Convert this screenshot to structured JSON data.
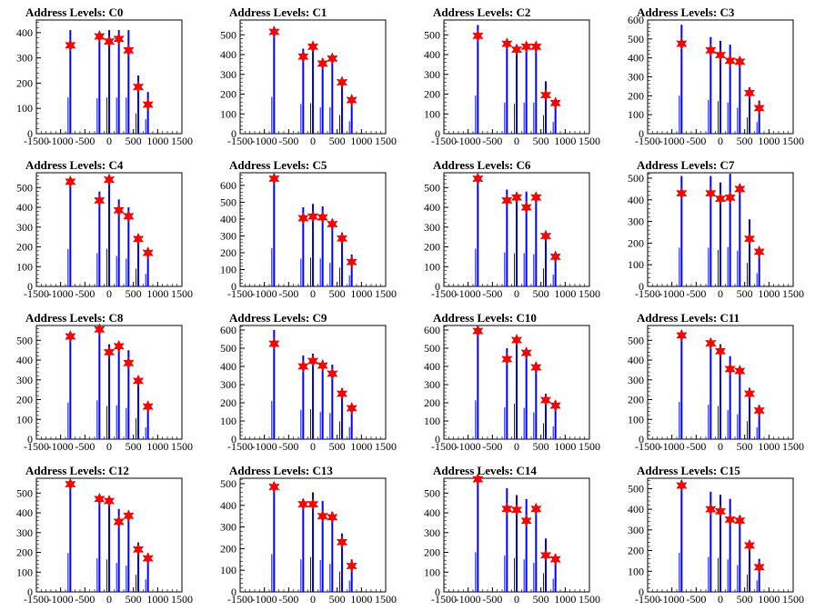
{
  "chart_data": [
    {
      "type": "bar",
      "title": "Address Levels: C0",
      "xlim": [
        -1500,
        1500
      ],
      "ylim": [
        0,
        450
      ],
      "yticks": [
        0,
        100,
        200,
        300,
        400
      ],
      "xticks": [
        -1500,
        -1000,
        -500,
        0,
        500,
        1000,
        1500
      ],
      "x": [
        -800,
        -200,
        0,
        200,
        400,
        600,
        800
      ],
      "values": [
        410,
        400,
        410,
        410,
        410,
        230,
        165
      ],
      "peaks_y": [
        350,
        385,
        365,
        375,
        330,
        185,
        115
      ]
    },
    {
      "type": "bar",
      "title": "Address Levels: C1",
      "xlim": [
        -1500,
        1500
      ],
      "ylim": [
        0,
        575
      ],
      "yticks": [
        0,
        100,
        200,
        300,
        400,
        500
      ],
      "xticks": [
        -1500,
        -1000,
        -500,
        0,
        500,
        1000,
        1500
      ],
      "x": [
        -800,
        -200,
        0,
        200,
        400,
        600,
        800
      ],
      "values": [
        530,
        430,
        440,
        380,
        380,
        270,
        180
      ],
      "peaks_y": [
        515,
        390,
        440,
        355,
        380,
        260,
        170
      ]
    },
    {
      "type": "bar",
      "title": "Address Levels: C2",
      "xlim": [
        -1500,
        1500
      ],
      "ylim": [
        0,
        575
      ],
      "yticks": [
        0,
        100,
        200,
        300,
        400,
        500
      ],
      "xticks": [
        -1500,
        -1000,
        -500,
        0,
        500,
        1000,
        1500
      ],
      "x": [
        -800,
        -200,
        0,
        200,
        400,
        600,
        800
      ],
      "values": [
        550,
        450,
        430,
        450,
        450,
        265,
        170
      ],
      "peaks_y": [
        495,
        455,
        425,
        440,
        440,
        195,
        155
      ]
    },
    {
      "type": "bar",
      "title": "Address Levels: C3",
      "xlim": [
        -1500,
        1500
      ],
      "ylim": [
        0,
        600
      ],
      "yticks": [
        0,
        100,
        200,
        300,
        400,
        500,
        600
      ],
      "xticks": [
        -1500,
        -1000,
        -500,
        0,
        500,
        1000,
        1500
      ],
      "x": [
        -800,
        -200,
        0,
        200,
        400,
        600,
        800
      ],
      "values": [
        575,
        510,
        490,
        470,
        390,
        245,
        175
      ],
      "peaks_y": [
        475,
        440,
        415,
        385,
        380,
        215,
        135
      ]
    },
    {
      "type": "bar",
      "title": "Address Levels: C4",
      "xlim": [
        -1500,
        1500
      ],
      "ylim": [
        0,
        575
      ],
      "yticks": [
        0,
        100,
        200,
        300,
        400,
        500
      ],
      "xticks": [
        -1500,
        -1000,
        -500,
        0,
        500,
        1000,
        1500
      ],
      "x": [
        -800,
        -200,
        0,
        200,
        400,
        600,
        800
      ],
      "values": [
        540,
        480,
        545,
        440,
        400,
        255,
        180
      ],
      "peaks_y": [
        530,
        435,
        540,
        385,
        355,
        240,
        170
      ]
    },
    {
      "type": "bar",
      "title": "Address Levels: C5",
      "xlim": [
        -1500,
        1500
      ],
      "ylim": [
        0,
        675
      ],
      "yticks": [
        0,
        100,
        200,
        300,
        400,
        500,
        600
      ],
      "xticks": [
        -1500,
        -1000,
        -500,
        0,
        500,
        1000,
        1500
      ],
      "x": [
        -800,
        -200,
        0,
        200,
        400,
        600,
        800
      ],
      "values": [
        650,
        470,
        490,
        475,
        400,
        320,
        190
      ],
      "peaks_y": [
        640,
        405,
        415,
        410,
        370,
        285,
        145
      ]
    },
    {
      "type": "bar",
      "title": "Address Levels: C6",
      "xlim": [
        -1500,
        1500
      ],
      "ylim": [
        0,
        575
      ],
      "yticks": [
        0,
        100,
        200,
        300,
        400,
        500
      ],
      "xticks": [
        -1500,
        -1000,
        -500,
        0,
        500,
        1000,
        1500
      ],
      "x": [
        -800,
        -200,
        0,
        200,
        400,
        600,
        800
      ],
      "values": [
        545,
        490,
        475,
        480,
        465,
        260,
        170
      ],
      "peaks_y": [
        545,
        435,
        450,
        400,
        450,
        255,
        150
      ]
    },
    {
      "type": "bar",
      "title": "Address Levels: C7",
      "xlim": [
        -1500,
        1500
      ],
      "ylim": [
        0,
        525
      ],
      "yticks": [
        0,
        100,
        200,
        300,
        400,
        500
      ],
      "xticks": [
        -1500,
        -1000,
        -500,
        0,
        500,
        1000,
        1500
      ],
      "x": [
        -800,
        -200,
        0,
        200,
        400,
        600,
        800
      ],
      "values": [
        510,
        510,
        480,
        520,
        470,
        310,
        175
      ],
      "peaks_y": [
        430,
        430,
        405,
        410,
        450,
        220,
        160
      ]
    },
    {
      "type": "bar",
      "title": "Address Levels: C8",
      "xlim": [
        -1500,
        1500
      ],
      "ylim": [
        0,
        575
      ],
      "yticks": [
        0,
        100,
        200,
        300,
        400,
        500
      ],
      "xticks": [
        -1500,
        -1000,
        -500,
        0,
        500,
        1000,
        1500
      ],
      "x": [
        -800,
        -200,
        0,
        200,
        400,
        600,
        800
      ],
      "values": [
        530,
        560,
        480,
        490,
        450,
        300,
        170
      ],
      "peaks_y": [
        520,
        555,
        440,
        470,
        385,
        295,
        165
      ]
    },
    {
      "type": "bar",
      "title": "Address Levels: C9",
      "xlim": [
        -1500,
        1500
      ],
      "ylim": [
        0,
        625
      ],
      "yticks": [
        0,
        100,
        200,
        300,
        400,
        500,
        600
      ],
      "xticks": [
        -1500,
        -1000,
        -500,
        0,
        500,
        1000,
        1500
      ],
      "x": [
        -800,
        -200,
        0,
        200,
        400,
        600,
        800
      ],
      "values": [
        600,
        460,
        470,
        430,
        410,
        280,
        190
      ],
      "peaks_y": [
        525,
        400,
        430,
        405,
        360,
        250,
        170
      ]
    },
    {
      "type": "bar",
      "title": "Address Levels: C10",
      "xlim": [
        -1500,
        1500
      ],
      "ylim": [
        0,
        625
      ],
      "yticks": [
        0,
        100,
        200,
        300,
        400,
        500,
        600
      ],
      "xticks": [
        -1500,
        -1000,
        -500,
        0,
        500,
        1000,
        1500
      ],
      "x": [
        -800,
        -200,
        0,
        200,
        400,
        600,
        800
      ],
      "values": [
        610,
        500,
        560,
        490,
        420,
        250,
        200
      ],
      "peaks_y": [
        595,
        440,
        545,
        475,
        395,
        215,
        185
      ]
    },
    {
      "type": "bar",
      "title": "Address Levels: C11",
      "xlim": [
        -1500,
        1500
      ],
      "ylim": [
        0,
        575
      ],
      "yticks": [
        0,
        100,
        200,
        300,
        400,
        500
      ],
      "xticks": [
        -1500,
        -1000,
        -500,
        0,
        500,
        1000,
        1500
      ],
      "x": [
        -800,
        -200,
        0,
        200,
        400,
        600,
        800
      ],
      "values": [
        540,
        500,
        480,
        420,
        360,
        260,
        170
      ],
      "peaks_y": [
        525,
        485,
        445,
        355,
        345,
        230,
        145
      ]
    },
    {
      "type": "bar",
      "title": "Address Levels: C12",
      "xlim": [
        -1500,
        1500
      ],
      "ylim": [
        0,
        575
      ],
      "yticks": [
        0,
        100,
        200,
        300,
        400,
        500
      ],
      "xticks": [
        -1500,
        -1000,
        -500,
        0,
        500,
        1000,
        1500
      ],
      "x": [
        -800,
        -200,
        0,
        200,
        400,
        600,
        800
      ],
      "values": [
        560,
        485,
        470,
        420,
        380,
        250,
        180
      ],
      "peaks_y": [
        545,
        470,
        460,
        355,
        385,
        215,
        170
      ]
    },
    {
      "type": "bar",
      "title": "Address Levels: C13",
      "xlim": [
        -1500,
        1500
      ],
      "ylim": [
        0,
        525
      ],
      "yticks": [
        0,
        100,
        200,
        300,
        400,
        500
      ],
      "xticks": [
        -1500,
        -1000,
        -500,
        0,
        500,
        1000,
        1500
      ],
      "x": [
        -800,
        -200,
        0,
        200,
        400,
        600,
        800
      ],
      "values": [
        500,
        430,
        460,
        420,
        370,
        270,
        150
      ],
      "peaks_y": [
        485,
        405,
        405,
        350,
        345,
        230,
        120
      ]
    },
    {
      "type": "bar",
      "title": "Address Levels: C14",
      "xlim": [
        -1500,
        1500
      ],
      "ylim": [
        0,
        575
      ],
      "yticks": [
        0,
        100,
        200,
        300,
        400,
        500
      ],
      "xticks": [
        -1500,
        -1000,
        -500,
        0,
        500,
        1000,
        1500
      ],
      "x": [
        -800,
        -200,
        0,
        200,
        400,
        600,
        800
      ],
      "values": [
        575,
        525,
        490,
        470,
        420,
        270,
        190
      ],
      "peaks_y": [
        570,
        420,
        415,
        360,
        420,
        185,
        165
      ]
    },
    {
      "type": "bar",
      "title": "Address Levels: C15",
      "xlim": [
        -1500,
        1500
      ],
      "ylim": [
        0,
        550
      ],
      "yticks": [
        0,
        100,
        200,
        300,
        400,
        500
      ],
      "xticks": [
        -1500,
        -1000,
        -500,
        0,
        500,
        1000,
        1500
      ],
      "x": [
        -800,
        -200,
        0,
        200,
        400,
        600,
        800
      ],
      "values": [
        540,
        485,
        470,
        450,
        370,
        240,
        160
      ],
      "peaks_y": [
        515,
        400,
        390,
        350,
        345,
        225,
        120
      ]
    }
  ],
  "colors": {
    "bar": "#0000ff",
    "marker": "#ff0000",
    "axis": "#000000"
  },
  "marker_icon": "red-star-marker"
}
